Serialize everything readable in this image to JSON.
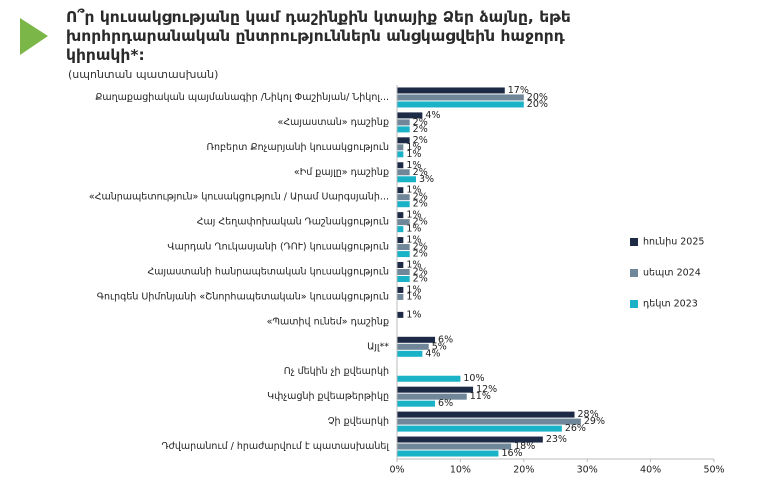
{
  "chart_data": {
    "type": "hbar",
    "title": "Ո՞ր կուսակցությանը կամ դաշինքին կտայիք Ձեր ձայնը, եթե խորհրդարանական ընտրություններն անցկացվեին հաջորդ կիրակի*:",
    "subtitle": "(սպոնտան պատասխան)",
    "categories": [
      "Քաղաքացիական պայմանագիր /Նիկոլ Փաշինյան/ Նիկոլ...",
      "«Հայաստան» դաշինք",
      "Ռոբերտ Քոչարյանի կուսակցություն",
      "«Իմ քայլը» դաշինք",
      "«Հանրապետություն» կուսակցություն / Արամ Սարգսյանի...",
      "Հայ Հեղափոխական Դաշնակցություն",
      "Վարդան Ղուկասյանի (ԴՈՒ) կուսակցություն",
      "Հայաստանի հանրապետական կուսակցություն",
      "Գուրգեն Սիմոնյանի «Շնորհապետական» կուսակցություն",
      "«Պատիվ ունեմ» դաշինք",
      "Այլ**",
      "Ոչ մեկին չի քվեարկի",
      "Կփչացնի քվեաթերթիկը",
      "Չի քվեարկի",
      "Դժվարանում / հրաժարվում է պատասխանել"
    ],
    "series": [
      {
        "name": "հունիս 2025",
        "color": "#1d2a45",
        "values": [
          17,
          4,
          2,
          1,
          1,
          1,
          1,
          1,
          1,
          1,
          6,
          null,
          12,
          28,
          23
        ],
        "value_labels": [
          "17%",
          "4%",
          "2%",
          "1%",
          "1%",
          "1%",
          "1%",
          "1%",
          "1%",
          "1%",
          "6%",
          null,
          "12%",
          "28%",
          "23%"
        ]
      },
      {
        "name": "սեպտ 2024",
        "color": "#6f8798",
        "values": [
          20,
          2,
          1,
          2,
          2,
          2,
          2,
          2,
          1,
          null,
          5,
          null,
          11,
          29,
          18
        ],
        "value_labels": [
          "20%",
          "2%",
          "1%",
          "2%",
          "2%",
          "2%",
          "2%",
          "2%",
          "1%",
          null,
          "5%",
          null,
          "11%",
          "29%",
          "18%"
        ]
      },
      {
        "name": "դեկտ 2023",
        "color": "#19b2c6",
        "values": [
          20,
          2,
          1,
          3,
          2,
          1,
          2,
          2,
          null,
          null,
          4,
          10,
          6,
          26,
          16
        ],
        "value_labels": [
          "20%",
          "2%",
          "1%",
          "3%",
          "2%",
          "1%",
          "2%",
          "2%",
          null,
          null,
          "4%",
          "10%",
          "6%",
          "26%",
          "16%"
        ]
      }
    ],
    "xlim": [
      0,
      50
    ],
    "xticks": [
      {
        "value": 0,
        "label": "0%"
      },
      {
        "value": 10,
        "label": "10%"
      },
      {
        "value": 20,
        "label": "20%"
      },
      {
        "value": 30,
        "label": "30%"
      },
      {
        "value": 40,
        "label": "40%"
      },
      {
        "value": 50,
        "label": "50%"
      }
    ],
    "grid": false,
    "legend": "right"
  }
}
